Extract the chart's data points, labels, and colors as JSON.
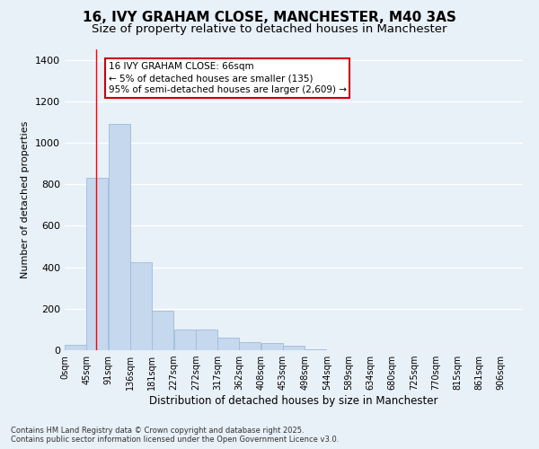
{
  "title_line1": "16, IVY GRAHAM CLOSE, MANCHESTER, M40 3AS",
  "title_line2": "Size of property relative to detached houses in Manchester",
  "xlabel": "Distribution of detached houses by size in Manchester",
  "ylabel": "Number of detached properties",
  "bar_color": "#c5d8ee",
  "bar_edge_color": "#a0bcd8",
  "background_color": "#e8f0f8",
  "grid_color": "#ffffff",
  "bin_labels": [
    "0sqm",
    "45sqm",
    "91sqm",
    "136sqm",
    "181sqm",
    "227sqm",
    "272sqm",
    "317sqm",
    "362sqm",
    "408sqm",
    "453sqm",
    "498sqm",
    "544sqm",
    "589sqm",
    "634sqm",
    "680sqm",
    "725sqm",
    "770sqm",
    "815sqm",
    "861sqm",
    "906sqm"
  ],
  "bar_values": [
    28,
    830,
    1090,
    425,
    190,
    100,
    100,
    62,
    40,
    35,
    20,
    6,
    0,
    0,
    0,
    0,
    0,
    0,
    0,
    0,
    0
  ],
  "bin_edges": [
    0,
    45,
    91,
    136,
    181,
    227,
    272,
    317,
    362,
    408,
    453,
    498,
    544,
    589,
    634,
    680,
    725,
    770,
    815,
    861,
    906
  ],
  "bin_width": 45,
  "ylim": [
    0,
    1450
  ],
  "red_line_x": 66,
  "annotation_text": "16 IVY GRAHAM CLOSE: 66sqm\n← 5% of detached houses are smaller (135)\n95% of semi-detached houses are larger (2,609) →",
  "annotation_box_facecolor": "#ffffff",
  "annotation_box_edgecolor": "#cc0000",
  "footnote": "Contains HM Land Registry data © Crown copyright and database right 2025.\nContains public sector information licensed under the Open Government Licence v3.0.",
  "title1_fontsize": 11,
  "title2_fontsize": 9.5,
  "xlabel_fontsize": 8.5,
  "ylabel_fontsize": 8,
  "tick_fontsize": 7,
  "annot_fontsize": 7.5,
  "footnote_fontsize": 6
}
